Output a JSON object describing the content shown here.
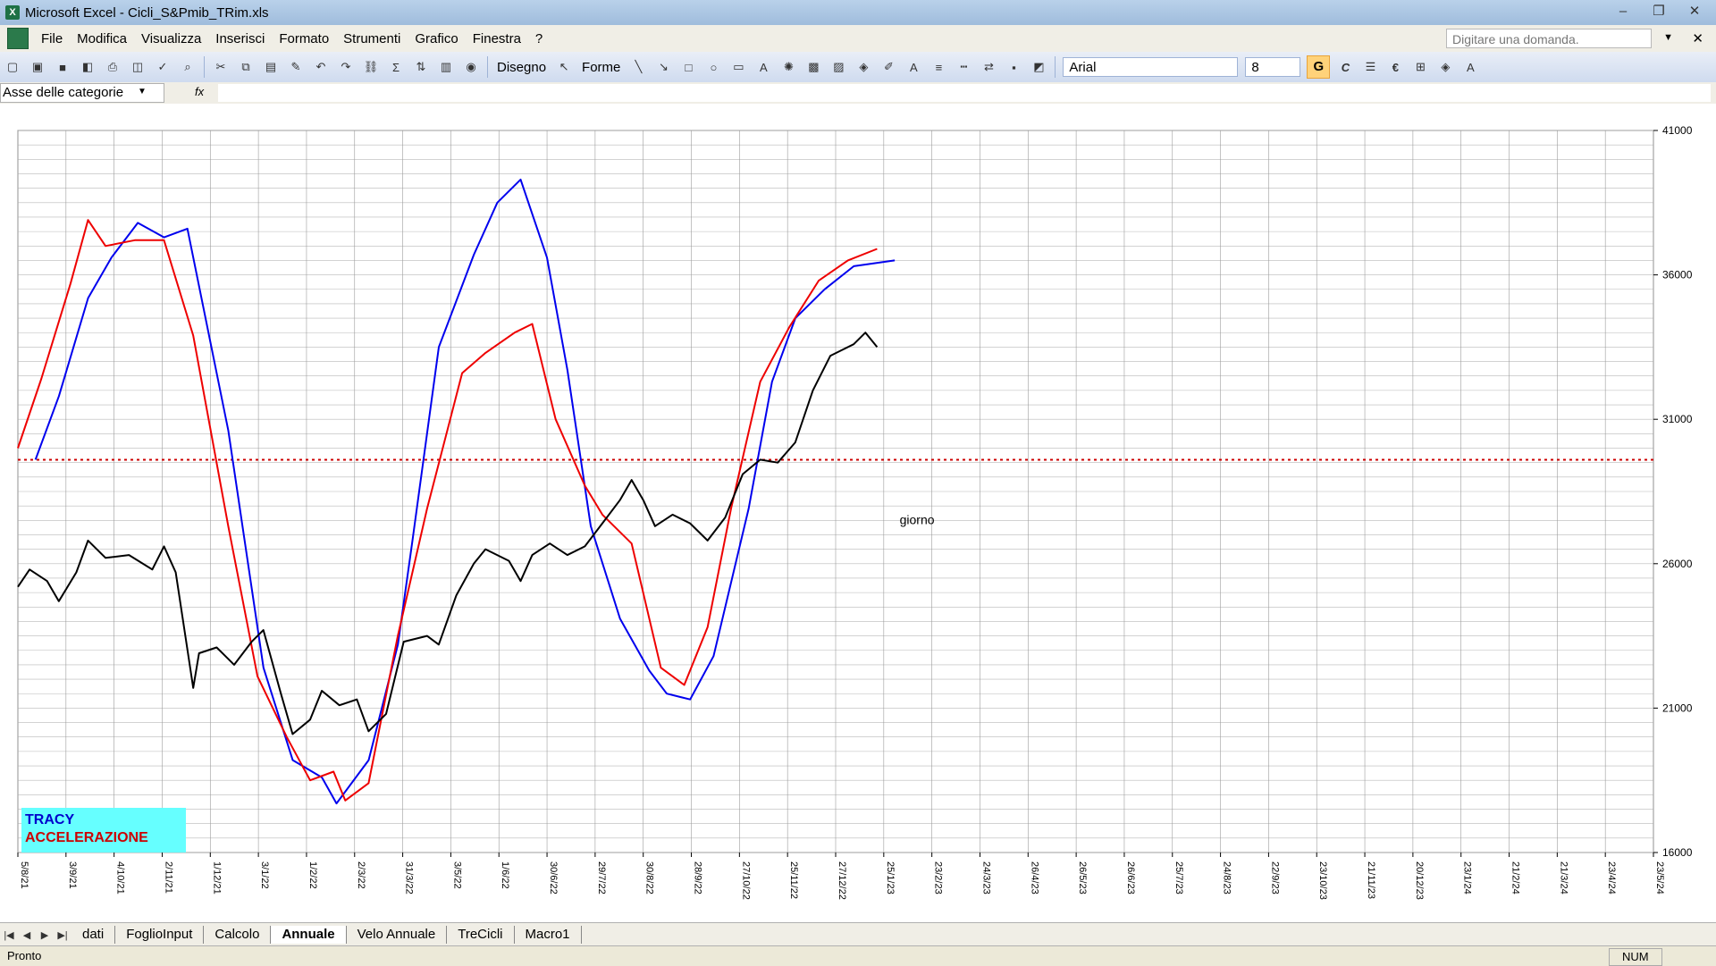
{
  "window": {
    "title": "Microsoft Excel - Cicli_S&Pmib_TRim.xls",
    "minimize": "‒",
    "restore": "❐",
    "close": "✕"
  },
  "menu": {
    "items": [
      "File",
      "Modifica",
      "Visualizza",
      "Inserisci",
      "Formato",
      "Strumenti",
      "Grafico",
      "Finestra",
      "?"
    ],
    "ask_placeholder": "Digitare una domanda.",
    "close": "✕"
  },
  "toolbar": {
    "draw_label": "Disegno",
    "shapes_label": "Forme",
    "font_name": "Arial",
    "font_size": "8",
    "bold_label": "G",
    "italic_label": "C",
    "euro_label": "€"
  },
  "formula_bar": {
    "name_box": "Asse delle categorie",
    "fx_label": "fx"
  },
  "chart_data": {
    "type": "line",
    "x_tick_labels": [
      "5/8/21",
      "3/9/21",
      "4/10/21",
      "2/11/21",
      "1/12/21",
      "3/1/22",
      "1/2/22",
      "2/3/22",
      "31/3/22",
      "3/5/22",
      "1/6/22",
      "30/6/22",
      "29/7/22",
      "30/8/22",
      "28/9/22",
      "27/10/22",
      "25/11/22",
      "27/12/22",
      "25/1/23",
      "23/2/23",
      "24/3/23",
      "26/4/23",
      "26/5/23",
      "26/6/23",
      "25/7/23",
      "24/8/23",
      "22/9/23",
      "23/10/23",
      "21/11/23",
      "20/12/23",
      "23/1/24",
      "21/2/24",
      "21/3/24",
      "23/4/24",
      "23/5/24"
    ],
    "y_tick_labels": [
      "41000",
      "36000",
      "31000",
      "26000",
      "21000",
      "16000"
    ],
    "ylim": [
      16000,
      41000
    ],
    "y_position": "right",
    "grid": true,
    "reference_line": {
      "value": 29600,
      "color": "#cc0000",
      "style": "dotted"
    },
    "annotations": [
      {
        "text": "giorno",
        "x": "7/2/23",
        "y": 27500
      }
    ],
    "series": [
      {
        "name": "TRACY",
        "color": "#0000ee",
        "start": "16/8/21",
        "points": [
          [
            0,
            29600
          ],
          [
            0.04,
            31800
          ],
          [
            0.09,
            35200
          ],
          [
            0.13,
            36600
          ],
          [
            0.175,
            37800
          ],
          [
            0.22,
            37300
          ],
          [
            0.26,
            37600
          ],
          [
            0.33,
            30600
          ],
          [
            0.39,
            22400
          ],
          [
            0.44,
            19200
          ],
          [
            0.49,
            18600
          ],
          [
            0.515,
            17700
          ],
          [
            0.57,
            19200
          ],
          [
            0.62,
            23200
          ],
          [
            0.645,
            26800
          ],
          [
            0.69,
            33500
          ],
          [
            0.75,
            36700
          ],
          [
            0.79,
            38500
          ],
          [
            0.83,
            39300
          ],
          [
            0.875,
            36600
          ],
          [
            0.91,
            32700
          ],
          [
            0.95,
            27300
          ],
          [
            1.0,
            24100
          ],
          [
            1.05,
            22300
          ],
          [
            1.08,
            21500
          ],
          [
            1.12,
            21300
          ],
          [
            1.16,
            22800
          ],
          [
            1.22,
            27900
          ],
          [
            1.26,
            32300
          ],
          [
            1.3,
            34500
          ],
          [
            1.35,
            35500
          ],
          [
            1.4,
            36300
          ],
          [
            1.47,
            36500
          ]
        ]
      },
      {
        "name": "ACCELERAZIONE",
        "color": "#ee0000",
        "start": "5/8/21",
        "points": [
          [
            0,
            30000
          ],
          [
            0.04,
            32400
          ],
          [
            0.09,
            35700
          ],
          [
            0.12,
            37900
          ],
          [
            0.15,
            37000
          ],
          [
            0.2,
            37200
          ],
          [
            0.25,
            37200
          ],
          [
            0.3,
            33900
          ],
          [
            0.36,
            27300
          ],
          [
            0.41,
            22100
          ],
          [
            0.46,
            20000
          ],
          [
            0.5,
            18500
          ],
          [
            0.54,
            18800
          ],
          [
            0.56,
            17800
          ],
          [
            0.6,
            18400
          ],
          [
            0.65,
            23500
          ],
          [
            0.7,
            27900
          ],
          [
            0.76,
            32600
          ],
          [
            0.8,
            33300
          ],
          [
            0.85,
            34000
          ],
          [
            0.88,
            34300
          ],
          [
            0.92,
            31000
          ],
          [
            0.97,
            28700
          ],
          [
            1.0,
            27700
          ],
          [
            1.05,
            26700
          ],
          [
            1.1,
            22400
          ],
          [
            1.14,
            21800
          ],
          [
            1.18,
            23800
          ],
          [
            1.22,
            27900
          ],
          [
            1.27,
            32300
          ],
          [
            1.32,
            34200
          ],
          [
            1.37,
            35800
          ],
          [
            1.42,
            36500
          ],
          [
            1.47,
            36900
          ]
        ]
      },
      {
        "name": "giorno",
        "color": "#000000",
        "start": "5/8/21",
        "points": [
          [
            0,
            25200
          ],
          [
            0.02,
            25800
          ],
          [
            0.05,
            25400
          ],
          [
            0.07,
            24700
          ],
          [
            0.1,
            25700
          ],
          [
            0.12,
            26800
          ],
          [
            0.15,
            26200
          ],
          [
            0.19,
            26300
          ],
          [
            0.23,
            25800
          ],
          [
            0.25,
            26600
          ],
          [
            0.27,
            25700
          ],
          [
            0.3,
            21700
          ],
          [
            0.31,
            22900
          ],
          [
            0.34,
            23100
          ],
          [
            0.37,
            22500
          ],
          [
            0.4,
            23300
          ],
          [
            0.42,
            23700
          ],
          [
            0.45,
            21500
          ],
          [
            0.47,
            20100
          ],
          [
            0.5,
            20600
          ],
          [
            0.52,
            21600
          ],
          [
            0.55,
            21100
          ],
          [
            0.58,
            21300
          ],
          [
            0.6,
            20200
          ],
          [
            0.63,
            20800
          ],
          [
            0.66,
            23300
          ],
          [
            0.7,
            23500
          ],
          [
            0.72,
            23200
          ],
          [
            0.75,
            24900
          ],
          [
            0.78,
            26000
          ],
          [
            0.8,
            26500
          ],
          [
            0.84,
            26100
          ],
          [
            0.86,
            25400
          ],
          [
            0.88,
            26300
          ],
          [
            0.91,
            26700
          ],
          [
            0.94,
            26300
          ],
          [
            0.97,
            26600
          ],
          [
            1.0,
            27400
          ],
          [
            1.03,
            28200
          ],
          [
            1.05,
            28900
          ],
          [
            1.07,
            28200
          ],
          [
            1.09,
            27300
          ],
          [
            1.12,
            27700
          ],
          [
            1.15,
            27400
          ],
          [
            1.18,
            26800
          ],
          [
            1.21,
            27600
          ],
          [
            1.24,
            29100
          ],
          [
            1.27,
            29600
          ],
          [
            1.3,
            29500
          ],
          [
            1.33,
            30200
          ],
          [
            1.36,
            32000
          ],
          [
            1.39,
            33200
          ],
          [
            1.41,
            33400
          ],
          [
            1.43,
            33600
          ],
          [
            1.45,
            34000
          ],
          [
            1.47,
            33500
          ]
        ]
      }
    ]
  },
  "legend": {
    "line1": "TRACY",
    "line2": "ACCELERAZIONE"
  },
  "sheet_tabs": {
    "tabs": [
      "dati",
      "FoglioInput",
      "Calcolo",
      "Annuale",
      "Velo Annuale",
      "TreCicli",
      "Macro1"
    ],
    "active": "Annuale",
    "nav": [
      "|◀",
      "◀",
      "▶",
      "▶|"
    ]
  },
  "status": {
    "text": "Pronto",
    "num": "NUM"
  }
}
